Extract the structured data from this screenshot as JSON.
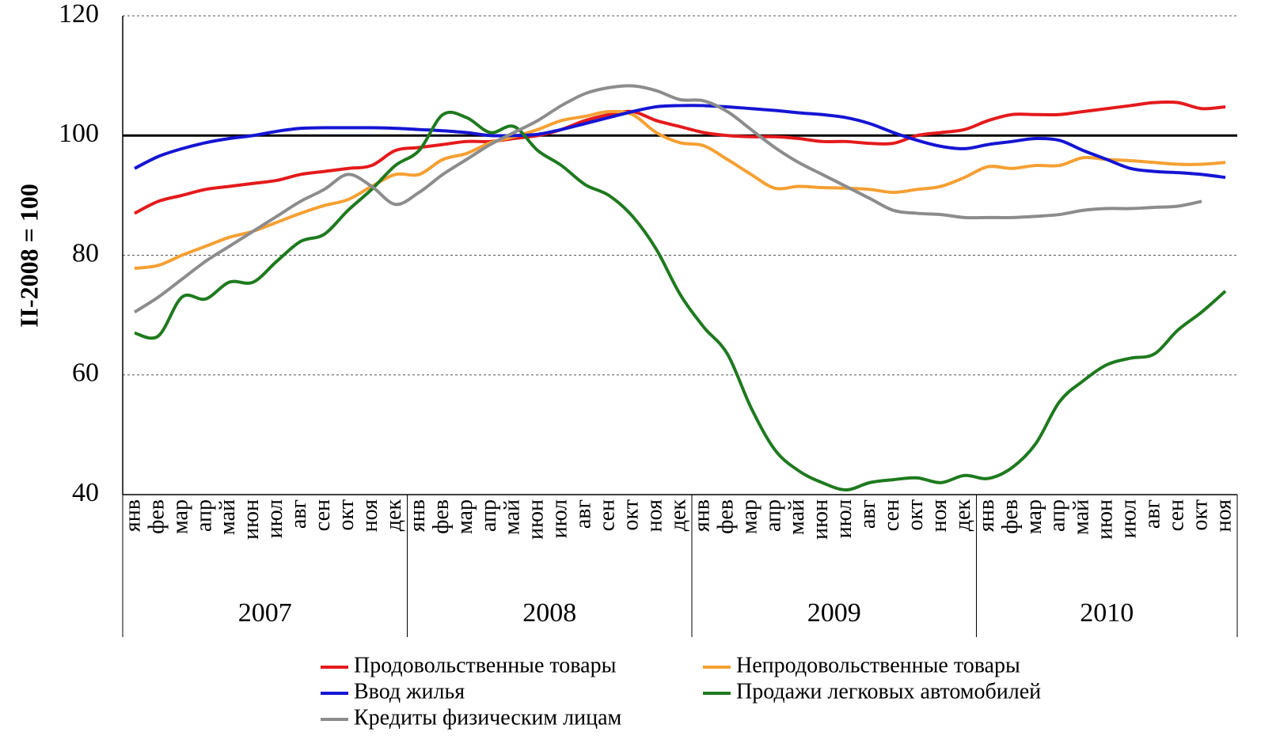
{
  "chart_data": {
    "type": "line",
    "ylabel": "II-2008 = 100",
    "categories": [
      "янв",
      "фев",
      "мар",
      "апр",
      "май",
      "июн",
      "июл",
      "авг",
      "сен",
      "окт",
      "ноя",
      "дек",
      "янв",
      "фев",
      "мар",
      "апр",
      "май",
      "июн",
      "июл",
      "авг",
      "сен",
      "окт",
      "ноя",
      "дек",
      "янв",
      "фев",
      "мар",
      "апр",
      "май",
      "июн",
      "июл",
      "авг",
      "сен",
      "окт",
      "ноя",
      "дек",
      "янв",
      "фев",
      "мар",
      "апр",
      "май",
      "июн",
      "июл",
      "авг",
      "сен",
      "окт",
      "ноя"
    ],
    "year_groups": [
      {
        "label": "2007",
        "months": 12
      },
      {
        "label": "2008",
        "months": 12
      },
      {
        "label": "2009",
        "months": 12
      },
      {
        "label": "2010",
        "months": 11
      }
    ],
    "series": [
      {
        "name": "Продовольственные товары",
        "color": "#e41a1c",
        "values": [
          87,
          89,
          90,
          91,
          91.5,
          92,
          92.5,
          93.5,
          94,
          94.5,
          95,
          97.5,
          98,
          98.5,
          99,
          99,
          99.5,
          100,
          101,
          102.5,
          103.5,
          104,
          102.5,
          101.5,
          100.5,
          100,
          99.8,
          99.8,
          99.5,
          99,
          99,
          98.7,
          98.7,
          100,
          100.5,
          101,
          102.5,
          103.5,
          103.5,
          103.5,
          104,
          104.5,
          105,
          105.5,
          105.5,
          104.5,
          104.8
        ]
      },
      {
        "name": "Непродовольственные товары",
        "color": "#f5a033",
        "values": [
          77.8,
          78.3,
          80,
          81.5,
          83,
          84,
          85.5,
          87,
          88.3,
          89.3,
          91.5,
          93.5,
          93.5,
          96,
          97,
          98.8,
          99.8,
          101,
          102.5,
          103.2,
          104,
          103.5,
          100.5,
          98.8,
          98.3,
          96,
          93.5,
          91.2,
          91.5,
          91.3,
          91.2,
          91,
          90.5,
          91,
          91.5,
          93,
          94.8,
          94.5,
          95,
          95,
          96.3,
          96,
          95.8,
          95.5,
          95.2,
          95.2,
          95.5
        ]
      },
      {
        "name": "Ввод жилья",
        "color": "#1515d4",
        "values": [
          94.5,
          96.5,
          97.8,
          98.8,
          99.5,
          100,
          100.7,
          101.2,
          101.3,
          101.3,
          101.3,
          101.2,
          101,
          100.8,
          100.5,
          100,
          100,
          100.2,
          101,
          102,
          103,
          104,
          104.8,
          105,
          105,
          104.8,
          104.5,
          104.2,
          103.8,
          103.5,
          103,
          102,
          100.5,
          99.2,
          98.2,
          97.8,
          98.5,
          99,
          99.5,
          99.2,
          97.5,
          96,
          94.5,
          94,
          93.8,
          93.5,
          93
        ]
      },
      {
        "name": "Продажи легковых автомобилей",
        "color": "#1e7a1e",
        "values": [
          67,
          66.5,
          73,
          72.7,
          75.5,
          75.5,
          79,
          82.3,
          83.5,
          87.5,
          91,
          95,
          97.5,
          103.5,
          103,
          100.5,
          101.5,
          97.5,
          95,
          91.8,
          90,
          86.5,
          81,
          73.5,
          68,
          63.5,
          54.5,
          47.5,
          44,
          42,
          40.8,
          42,
          42.5,
          42.8,
          42,
          43.2,
          42.7,
          44.5,
          48.5,
          55.5,
          59,
          61.7,
          62.8,
          63.5,
          67.5,
          70.5,
          74
        ]
      },
      {
        "name": "Кредиты физическим лицам",
        "color": "#8c8c8c",
        "values": [
          70.5,
          73,
          76,
          79,
          81.5,
          84,
          86.5,
          89,
          91,
          93.5,
          91.5,
          88.5,
          90.5,
          93.5,
          96,
          98.5,
          100.5,
          102.5,
          105,
          107,
          108,
          108.3,
          107.5,
          106,
          105.8,
          104,
          101,
          98,
          95.5,
          93.5,
          91.5,
          89.5,
          87.5,
          87,
          86.8,
          86.3,
          86.3,
          86.3,
          86.5,
          86.8,
          87.5,
          87.8,
          87.8,
          88,
          88.2,
          89,
          null
        ]
      }
    ],
    "ylim": [
      40,
      120
    ],
    "yticks": [
      40,
      60,
      80,
      100,
      120
    ],
    "grid": true,
    "reference_line": 100
  }
}
